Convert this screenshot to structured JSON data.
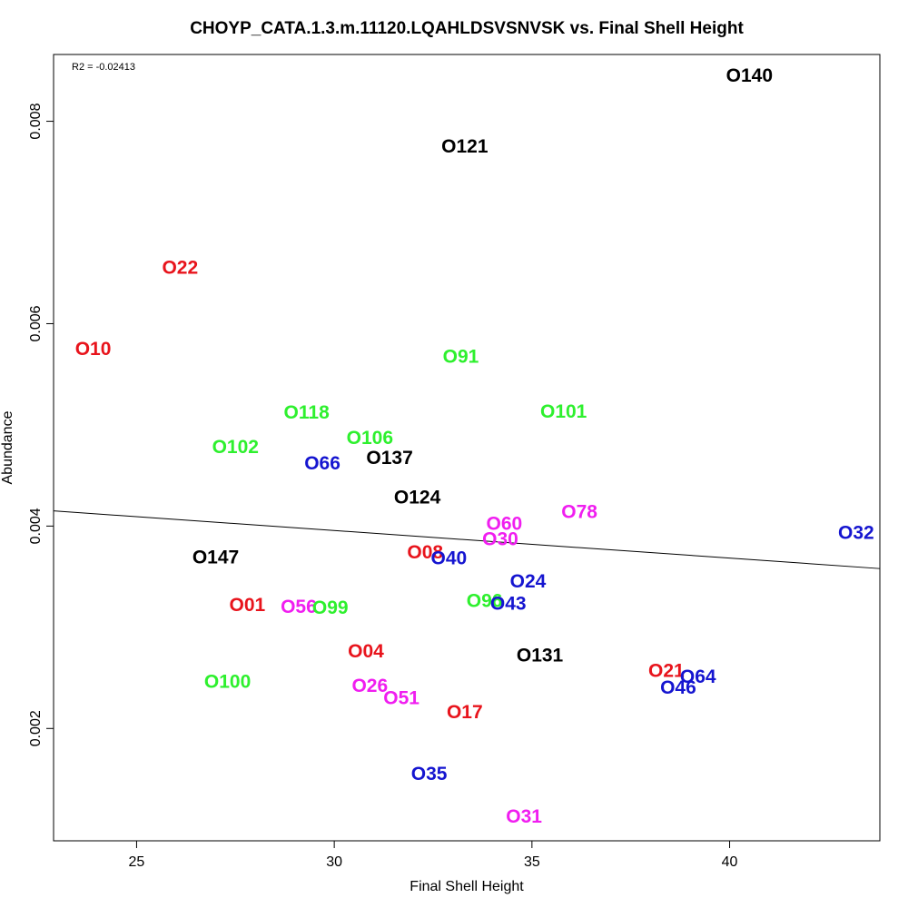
{
  "chart_data": {
    "type": "scatter",
    "title": "CHOYP_CATA.1.3.m.11120.LQAHLDSVSNVSK vs. Final Shell Height",
    "xlabel": "Final Shell Height",
    "ylabel": "Abundance",
    "annotation": "R2 = -0.02413",
    "xlim": [
      22.9,
      43.8
    ],
    "ylim": [
      0.00089,
      0.00866
    ],
    "xticks": [
      25,
      30,
      35,
      40
    ],
    "yticks": [
      0.002,
      0.004,
      0.006,
      0.008
    ],
    "xtick_labels": [
      "25",
      "30",
      "35",
      "40"
    ],
    "ytick_labels": [
      "0.002",
      "0.004",
      "0.006",
      "0.008"
    ],
    "grid": false,
    "trendline": {
      "x": [
        22.9,
        43.8
      ],
      "y": [
        0.00415,
        0.00358
      ]
    },
    "colors": {
      "red": "#e8141c",
      "green": "#2ef02e",
      "blue": "#1515d0",
      "magenta": "#f01ef0",
      "black": "#000000"
    },
    "points": [
      {
        "label": "O140",
        "x": 40.5,
        "y": 0.00845,
        "color": "black"
      },
      {
        "label": "O121",
        "x": 33.3,
        "y": 0.00775,
        "color": "black"
      },
      {
        "label": "O22",
        "x": 26.1,
        "y": 0.00655,
        "color": "red"
      },
      {
        "label": "O10",
        "x": 23.9,
        "y": 0.00575,
        "color": "red"
      },
      {
        "label": "O91",
        "x": 33.2,
        "y": 0.00567,
        "color": "green"
      },
      {
        "label": "O118",
        "x": 29.3,
        "y": 0.00512,
        "color": "green"
      },
      {
        "label": "O101",
        "x": 35.8,
        "y": 0.00513,
        "color": "green"
      },
      {
        "label": "O106",
        "x": 30.9,
        "y": 0.00487,
        "color": "green"
      },
      {
        "label": "O102",
        "x": 27.5,
        "y": 0.00478,
        "color": "green"
      },
      {
        "label": "O137",
        "x": 31.4,
        "y": 0.00467,
        "color": "black"
      },
      {
        "label": "O66",
        "x": 29.7,
        "y": 0.00462,
        "color": "blue"
      },
      {
        "label": "O124",
        "x": 32.1,
        "y": 0.00428,
        "color": "black"
      },
      {
        "label": "O78",
        "x": 36.2,
        "y": 0.00414,
        "color": "magenta"
      },
      {
        "label": "O60",
        "x": 34.3,
        "y": 0.00402,
        "color": "magenta"
      },
      {
        "label": "O32",
        "x": 43.2,
        "y": 0.00393,
        "color": "blue"
      },
      {
        "label": "O30",
        "x": 34.2,
        "y": 0.00387,
        "color": "magenta"
      },
      {
        "label": "O08",
        "x": 32.3,
        "y": 0.00374,
        "color": "red"
      },
      {
        "label": "O147",
        "x": 27.0,
        "y": 0.00369,
        "color": "black"
      },
      {
        "label": "O40",
        "x": 32.9,
        "y": 0.00368,
        "color": "blue"
      },
      {
        "label": "O24",
        "x": 34.9,
        "y": 0.00345,
        "color": "blue"
      },
      {
        "label": "O96",
        "x": 33.8,
        "y": 0.00326,
        "color": "green"
      },
      {
        "label": "O43",
        "x": 34.4,
        "y": 0.00323,
        "color": "blue"
      },
      {
        "label": "O01",
        "x": 27.8,
        "y": 0.00322,
        "color": "red"
      },
      {
        "label": "O56",
        "x": 29.1,
        "y": 0.0032,
        "color": "magenta"
      },
      {
        "label": "O99",
        "x": 29.9,
        "y": 0.00319,
        "color": "green"
      },
      {
        "label": "O04",
        "x": 30.8,
        "y": 0.00276,
        "color": "red"
      },
      {
        "label": "O131",
        "x": 35.2,
        "y": 0.00272,
        "color": "black"
      },
      {
        "label": "O21",
        "x": 38.4,
        "y": 0.00257,
        "color": "red"
      },
      {
        "label": "O64",
        "x": 39.2,
        "y": 0.00251,
        "color": "blue"
      },
      {
        "label": "O100",
        "x": 27.3,
        "y": 0.00246,
        "color": "green"
      },
      {
        "label": "O26",
        "x": 30.9,
        "y": 0.00242,
        "color": "magenta"
      },
      {
        "label": "O46",
        "x": 38.7,
        "y": 0.0024,
        "color": "blue"
      },
      {
        "label": "O51",
        "x": 31.7,
        "y": 0.0023,
        "color": "magenta"
      },
      {
        "label": "O17",
        "x": 33.3,
        "y": 0.00216,
        "color": "red"
      },
      {
        "label": "O35",
        "x": 32.4,
        "y": 0.00155,
        "color": "blue"
      },
      {
        "label": "O31",
        "x": 34.8,
        "y": 0.00113,
        "color": "magenta"
      }
    ]
  }
}
